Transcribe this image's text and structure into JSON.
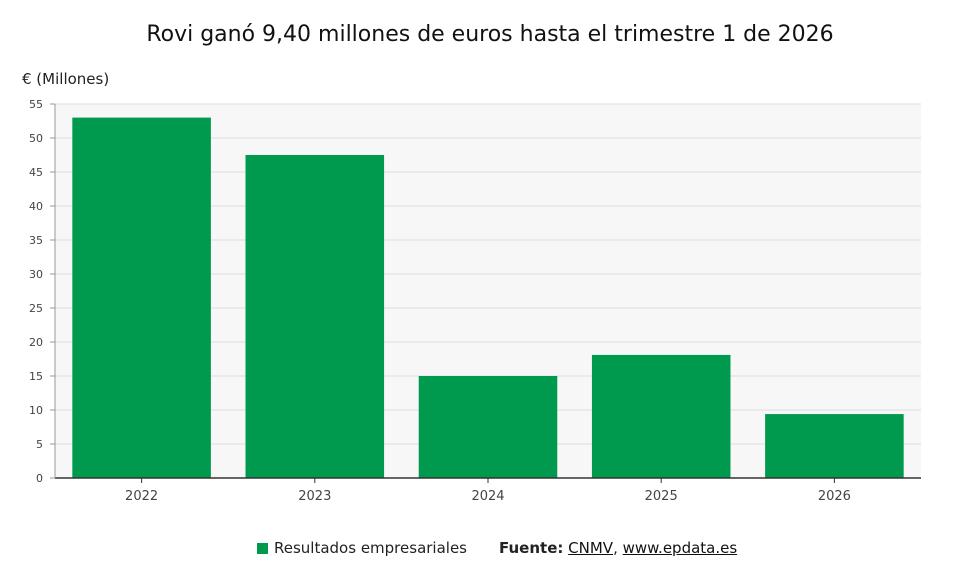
{
  "chart_data": {
    "type": "bar",
    "title": "Rovi ganó 9,40 millones de euros hasta el trimestre 1 de 2026",
    "ylabel": "€ (Millones)",
    "xlabel": "",
    "categories": [
      "2022",
      "2023",
      "2024",
      "2025",
      "2026"
    ],
    "series": [
      {
        "name": "Resultados empresariales",
        "values": [
          53.0,
          47.5,
          15.0,
          18.1,
          9.4
        ],
        "color": "#009a4e"
      }
    ],
    "ylim": [
      0,
      55
    ],
    "yticks": [
      "0",
      "5",
      "10",
      "15",
      "20",
      "25",
      "30",
      "35",
      "40",
      "45",
      "50",
      "55"
    ],
    "grid": true,
    "legend_position": "bottom"
  },
  "source": {
    "label": "Fuente:",
    "links": [
      "CNMV",
      "www.epdata.es"
    ],
    "separator": ","
  },
  "colors": {
    "bar": "#009a4e",
    "plot_background": "#f7f7f7",
    "grid": "#dcdcdc",
    "axis": "#333333"
  }
}
